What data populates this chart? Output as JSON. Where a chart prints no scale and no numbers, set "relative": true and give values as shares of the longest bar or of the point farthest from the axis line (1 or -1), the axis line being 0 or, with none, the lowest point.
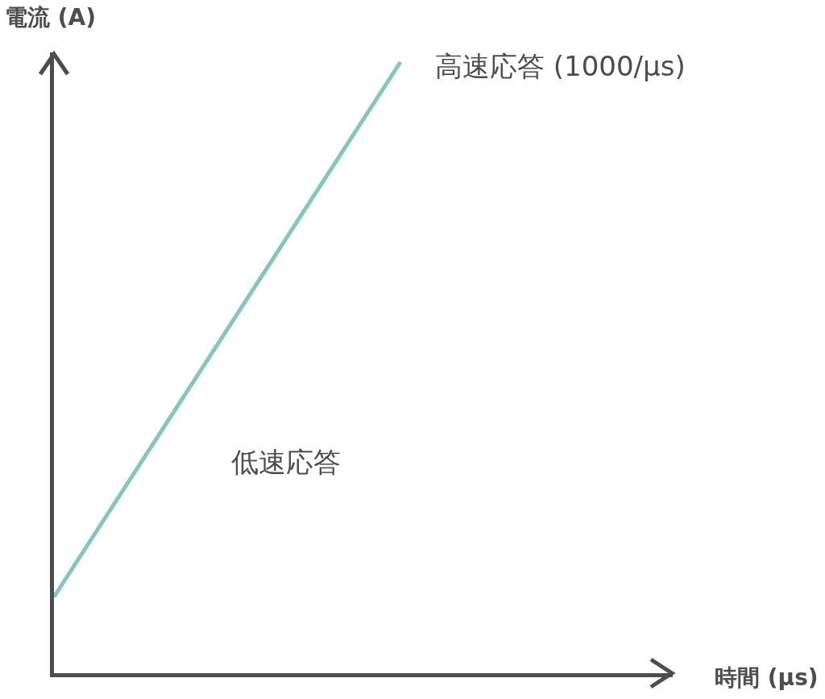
{
  "chart_data": {
    "type": "line",
    "relative": true,
    "xlabel": "時間 (µs)",
    "ylabel": "電流 (A)",
    "categories": [
      null,
      null
    ],
    "series": [
      {
        "color": "#86c5bb",
        "values": [
          0.125,
          1
        ]
      }
    ],
    "annotations": [
      "高速応答 (1000/µs)",
      "低速応答"
    ],
    "marker": "none",
    "line_style": "solid"
  }
}
